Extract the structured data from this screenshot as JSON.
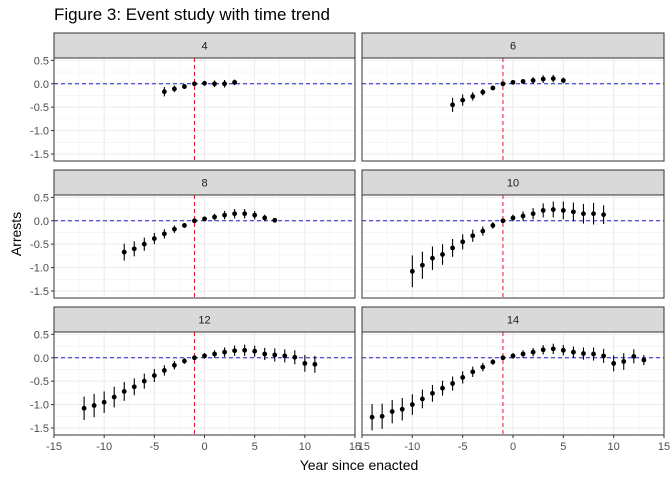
{
  "title": "Figure 3: Event study with time trend",
  "chart_data": {
    "type": "scatter",
    "title": "Figure 3: Event study with time trend",
    "xlabel": "Year since enacted",
    "ylabel": "Arrests",
    "xlim": [
      -15,
      15
    ],
    "ylim": [
      -1.65,
      0.55
    ],
    "x_ticks": [
      -15,
      -10,
      -5,
      0,
      5,
      10,
      15
    ],
    "x_tick_labels": [
      "-15",
      "-10",
      "-5",
      "0",
      "5",
      "10",
      "15"
    ],
    "y_ticks": [
      0.5,
      0.0,
      -0.5,
      -1.0,
      -1.5
    ],
    "y_tick_labels": [
      "0.5",
      "0.0",
      "-0.5",
      "-1.0",
      "-1.5"
    ],
    "reference_lines": {
      "vertical_x": -1,
      "vertical_color": "#e8112d",
      "horizontal_y": 0,
      "horizontal_color": "#1f1fd1"
    },
    "layout": "facets 3 rows x 2 columns",
    "grid": true,
    "point_color": "#000000",
    "facets": [
      {
        "label": "4",
        "points": [
          {
            "x": -4,
            "y": -0.17,
            "lo": -0.27,
            "hi": -0.07
          },
          {
            "x": -3,
            "y": -0.11,
            "lo": -0.18,
            "hi": -0.04
          },
          {
            "x": -2,
            "y": -0.06,
            "lo": -0.11,
            "hi": -0.01
          },
          {
            "x": -1,
            "y": 0.0,
            "lo": 0.0,
            "hi": 0.0
          },
          {
            "x": 0,
            "y": 0.01,
            "lo": -0.04,
            "hi": 0.06
          },
          {
            "x": 1,
            "y": 0.0,
            "lo": -0.07,
            "hi": 0.07
          },
          {
            "x": 2,
            "y": 0.0,
            "lo": -0.08,
            "hi": 0.08
          },
          {
            "x": 3,
            "y": 0.03,
            "lo": -0.03,
            "hi": 0.09
          }
        ]
      },
      {
        "label": "6",
        "points": [
          {
            "x": -6,
            "y": -0.45,
            "lo": -0.6,
            "hi": -0.3
          },
          {
            "x": -5,
            "y": -0.35,
            "lo": -0.47,
            "hi": -0.23
          },
          {
            "x": -4,
            "y": -0.27,
            "lo": -0.36,
            "hi": -0.18
          },
          {
            "x": -3,
            "y": -0.18,
            "lo": -0.25,
            "hi": -0.11
          },
          {
            "x": -2,
            "y": -0.09,
            "lo": -0.14,
            "hi": -0.04
          },
          {
            "x": -1,
            "y": 0.0,
            "lo": 0.0,
            "hi": 0.0
          },
          {
            "x": 0,
            "y": 0.03,
            "lo": -0.01,
            "hi": 0.07
          },
          {
            "x": 1,
            "y": 0.05,
            "lo": 0.0,
            "hi": 0.1
          },
          {
            "x": 2,
            "y": 0.07,
            "lo": 0.0,
            "hi": 0.14
          },
          {
            "x": 3,
            "y": 0.1,
            "lo": 0.02,
            "hi": 0.18
          },
          {
            "x": 4,
            "y": 0.11,
            "lo": 0.03,
            "hi": 0.19
          },
          {
            "x": 5,
            "y": 0.07,
            "lo": 0.01,
            "hi": 0.13
          }
        ]
      },
      {
        "label": "8",
        "points": [
          {
            "x": -8,
            "y": -0.67,
            "lo": -0.85,
            "hi": -0.49
          },
          {
            "x": -7,
            "y": -0.6,
            "lo": -0.76,
            "hi": -0.44
          },
          {
            "x": -6,
            "y": -0.5,
            "lo": -0.64,
            "hi": -0.36
          },
          {
            "x": -5,
            "y": -0.38,
            "lo": -0.5,
            "hi": -0.26
          },
          {
            "x": -4,
            "y": -0.28,
            "lo": -0.38,
            "hi": -0.18
          },
          {
            "x": -3,
            "y": -0.18,
            "lo": -0.26,
            "hi": -0.1
          },
          {
            "x": -2,
            "y": -0.1,
            "lo": -0.15,
            "hi": -0.05
          },
          {
            "x": -1,
            "y": 0.0,
            "lo": 0.0,
            "hi": 0.0
          },
          {
            "x": 0,
            "y": 0.04,
            "lo": -0.01,
            "hi": 0.09
          },
          {
            "x": 1,
            "y": 0.08,
            "lo": 0.01,
            "hi": 0.15
          },
          {
            "x": 2,
            "y": 0.12,
            "lo": 0.03,
            "hi": 0.21
          },
          {
            "x": 3,
            "y": 0.15,
            "lo": 0.05,
            "hi": 0.25
          },
          {
            "x": 4,
            "y": 0.15,
            "lo": 0.05,
            "hi": 0.25
          },
          {
            "x": 5,
            "y": 0.12,
            "lo": 0.03,
            "hi": 0.21
          },
          {
            "x": 6,
            "y": 0.06,
            "lo": -0.01,
            "hi": 0.13
          },
          {
            "x": 7,
            "y": 0.01,
            "lo": -0.04,
            "hi": 0.06
          }
        ]
      },
      {
        "label": "10",
        "points": [
          {
            "x": -10,
            "y": -1.08,
            "lo": -1.42,
            "hi": -0.74
          },
          {
            "x": -9,
            "y": -0.95,
            "lo": -1.24,
            "hi": -0.66
          },
          {
            "x": -8,
            "y": -0.8,
            "lo": -1.05,
            "hi": -0.55
          },
          {
            "x": -7,
            "y": -0.72,
            "lo": -0.94,
            "hi": -0.5
          },
          {
            "x": -6,
            "y": -0.58,
            "lo": -0.77,
            "hi": -0.39
          },
          {
            "x": -5,
            "y": -0.45,
            "lo": -0.61,
            "hi": -0.29
          },
          {
            "x": -4,
            "y": -0.32,
            "lo": -0.45,
            "hi": -0.19
          },
          {
            "x": -3,
            "y": -0.22,
            "lo": -0.32,
            "hi": -0.12
          },
          {
            "x": -2,
            "y": -0.1,
            "lo": -0.17,
            "hi": -0.03
          },
          {
            "x": -1,
            "y": 0.0,
            "lo": 0.0,
            "hi": 0.0
          },
          {
            "x": 0,
            "y": 0.06,
            "lo": -0.01,
            "hi": 0.13
          },
          {
            "x": 1,
            "y": 0.1,
            "lo": 0.0,
            "hi": 0.2
          },
          {
            "x": 2,
            "y": 0.15,
            "lo": 0.03,
            "hi": 0.27
          },
          {
            "x": 3,
            "y": 0.22,
            "lo": 0.07,
            "hi": 0.37
          },
          {
            "x": 4,
            "y": 0.24,
            "lo": 0.07,
            "hi": 0.41
          },
          {
            "x": 5,
            "y": 0.22,
            "lo": 0.03,
            "hi": 0.41
          },
          {
            "x": 6,
            "y": 0.19,
            "lo": -0.01,
            "hi": 0.39
          },
          {
            "x": 7,
            "y": 0.15,
            "lo": -0.06,
            "hi": 0.36
          },
          {
            "x": 8,
            "y": 0.15,
            "lo": -0.08,
            "hi": 0.38
          },
          {
            "x": 9,
            "y": 0.13,
            "lo": -0.07,
            "hi": 0.33
          }
        ]
      },
      {
        "label": "12",
        "points": [
          {
            "x": -12,
            "y": -1.08,
            "lo": -1.33,
            "hi": -0.83
          },
          {
            "x": -11,
            "y": -1.02,
            "lo": -1.27,
            "hi": -0.77
          },
          {
            "x": -10,
            "y": -0.95,
            "lo": -1.18,
            "hi": -0.72
          },
          {
            "x": -9,
            "y": -0.84,
            "lo": -1.06,
            "hi": -0.62
          },
          {
            "x": -8,
            "y": -0.72,
            "lo": -0.92,
            "hi": -0.52
          },
          {
            "x": -7,
            "y": -0.62,
            "lo": -0.8,
            "hi": -0.44
          },
          {
            "x": -6,
            "y": -0.5,
            "lo": -0.66,
            "hi": -0.34
          },
          {
            "x": -5,
            "y": -0.38,
            "lo": -0.52,
            "hi": -0.24
          },
          {
            "x": -4,
            "y": -0.27,
            "lo": -0.38,
            "hi": -0.16
          },
          {
            "x": -3,
            "y": -0.16,
            "lo": -0.25,
            "hi": -0.07
          },
          {
            "x": -2,
            "y": -0.07,
            "lo": -0.13,
            "hi": -0.01
          },
          {
            "x": -1,
            "y": 0.0,
            "lo": 0.0,
            "hi": 0.0
          },
          {
            "x": 0,
            "y": 0.04,
            "lo": -0.02,
            "hi": 0.1
          },
          {
            "x": 1,
            "y": 0.08,
            "lo": 0.0,
            "hi": 0.16
          },
          {
            "x": 2,
            "y": 0.12,
            "lo": 0.02,
            "hi": 0.22
          },
          {
            "x": 3,
            "y": 0.15,
            "lo": 0.04,
            "hi": 0.26
          },
          {
            "x": 4,
            "y": 0.16,
            "lo": 0.04,
            "hi": 0.28
          },
          {
            "x": 5,
            "y": 0.14,
            "lo": 0.02,
            "hi": 0.26
          },
          {
            "x": 6,
            "y": 0.08,
            "lo": -0.05,
            "hi": 0.21
          },
          {
            "x": 7,
            "y": 0.06,
            "lo": -0.08,
            "hi": 0.2
          },
          {
            "x": 8,
            "y": 0.04,
            "lo": -0.1,
            "hi": 0.18
          },
          {
            "x": 9,
            "y": 0.01,
            "lo": -0.14,
            "hi": 0.16
          },
          {
            "x": 10,
            "y": -0.12,
            "lo": -0.3,
            "hi": 0.06
          },
          {
            "x": 11,
            "y": -0.14,
            "lo": -0.32,
            "hi": 0.04
          }
        ]
      },
      {
        "label": "14",
        "points": [
          {
            "x": -14,
            "y": -1.27,
            "lo": -1.55,
            "hi": -0.99
          },
          {
            "x": -13,
            "y": -1.25,
            "lo": -1.52,
            "hi": -0.98
          },
          {
            "x": -12,
            "y": -1.15,
            "lo": -1.4,
            "hi": -0.9
          },
          {
            "x": -11,
            "y": -1.1,
            "lo": -1.34,
            "hi": -0.86
          },
          {
            "x": -10,
            "y": -1.0,
            "lo": -1.22,
            "hi": -0.78
          },
          {
            "x": -9,
            "y": -0.88,
            "lo": -1.08,
            "hi": -0.68
          },
          {
            "x": -8,
            "y": -0.76,
            "lo": -0.94,
            "hi": -0.58
          },
          {
            "x": -7,
            "y": -0.65,
            "lo": -0.81,
            "hi": -0.49
          },
          {
            "x": -6,
            "y": -0.55,
            "lo": -0.7,
            "hi": -0.4
          },
          {
            "x": -5,
            "y": -0.42,
            "lo": -0.55,
            "hi": -0.29
          },
          {
            "x": -4,
            "y": -0.3,
            "lo": -0.41,
            "hi": -0.19
          },
          {
            "x": -3,
            "y": -0.2,
            "lo": -0.29,
            "hi": -0.11
          },
          {
            "x": -2,
            "y": -0.09,
            "lo": -0.15,
            "hi": -0.03
          },
          {
            "x": -1,
            "y": 0.0,
            "lo": 0.0,
            "hi": 0.0
          },
          {
            "x": 0,
            "y": 0.04,
            "lo": -0.02,
            "hi": 0.1
          },
          {
            "x": 1,
            "y": 0.08,
            "lo": 0.0,
            "hi": 0.16
          },
          {
            "x": 2,
            "y": 0.12,
            "lo": 0.03,
            "hi": 0.21
          },
          {
            "x": 3,
            "y": 0.17,
            "lo": 0.07,
            "hi": 0.27
          },
          {
            "x": 4,
            "y": 0.19,
            "lo": 0.08,
            "hi": 0.3
          },
          {
            "x": 5,
            "y": 0.16,
            "lo": 0.05,
            "hi": 0.27
          },
          {
            "x": 6,
            "y": 0.12,
            "lo": 0.0,
            "hi": 0.24
          },
          {
            "x": 7,
            "y": 0.09,
            "lo": -0.04,
            "hi": 0.22
          },
          {
            "x": 8,
            "y": 0.08,
            "lo": -0.06,
            "hi": 0.22
          },
          {
            "x": 9,
            "y": 0.04,
            "lo": -0.11,
            "hi": 0.19
          },
          {
            "x": 10,
            "y": -0.12,
            "lo": -0.29,
            "hi": 0.05
          },
          {
            "x": 11,
            "y": -0.08,
            "lo": -0.26,
            "hi": 0.1
          },
          {
            "x": 12,
            "y": 0.03,
            "lo": -0.12,
            "hi": 0.18
          },
          {
            "x": 13,
            "y": -0.05,
            "lo": -0.16,
            "hi": 0.06
          }
        ]
      }
    ]
  }
}
